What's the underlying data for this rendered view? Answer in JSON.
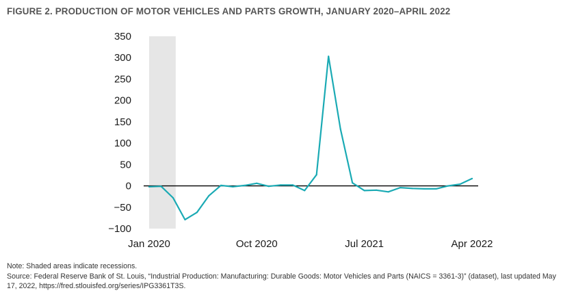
{
  "title": "FIGURE 2. PRODUCTION OF MOTOR VEHICLES AND PARTS GROWTH, JANUARY 2020–APRIL 2022",
  "note": "Note: Shaded areas indicate recessions.",
  "source": "Source: Federal Reserve Bank of St. Louis, “Industrial Production: Manufacturing: Durable Goods: Motor Vehicles and Parts (NAICS = 3361-3)” (dataset), last updated May 17, 2022, https://fred.stlouisfed.org/series/IPG3361T3S.",
  "chart_data": {
    "type": "line",
    "title": "FIGURE 2. PRODUCTION OF MOTOR VEHICLES AND PARTS GROWTH, JANUARY 2020–APRIL 2022",
    "x": [
      "2020-01",
      "2020-02",
      "2020-03",
      "2020-04",
      "2020-05",
      "2020-06",
      "2020-07",
      "2020-08",
      "2020-09",
      "2020-10",
      "2020-11",
      "2020-12",
      "2021-01",
      "2021-02",
      "2021-03",
      "2021-04",
      "2021-05",
      "2021-06",
      "2021-07",
      "2021-08",
      "2021-09",
      "2021-10",
      "2021-11",
      "2021-12",
      "2022-01",
      "2022-02",
      "2022-03",
      "2022-04"
    ],
    "series": [
      {
        "values": [
          -2,
          -1,
          -28,
          -79,
          -62,
          -23,
          1,
          -2,
          1,
          6,
          -1,
          2,
          2,
          -11,
          26,
          303,
          133,
          7,
          -11,
          -10,
          -14,
          -4,
          -6,
          -7,
          -7,
          0,
          4,
          17
        ],
        "color": "#1aaab4"
      }
    ],
    "x_tick_labels": [
      "Jan 2020",
      "Oct 2020",
      "Jul 2021",
      "Apr 2022"
    ],
    "y_ticks": [
      350,
      300,
      250,
      200,
      150,
      100,
      50,
      0,
      -50,
      -100
    ],
    "ylim": [
      -100,
      350
    ],
    "recession_shading": {
      "start": "2020-01",
      "end": "2020-04",
      "color": "#e6e6e6"
    },
    "zero_line_color": "#000000",
    "grid": false,
    "legend": "none",
    "xlabel": "",
    "ylabel": ""
  }
}
